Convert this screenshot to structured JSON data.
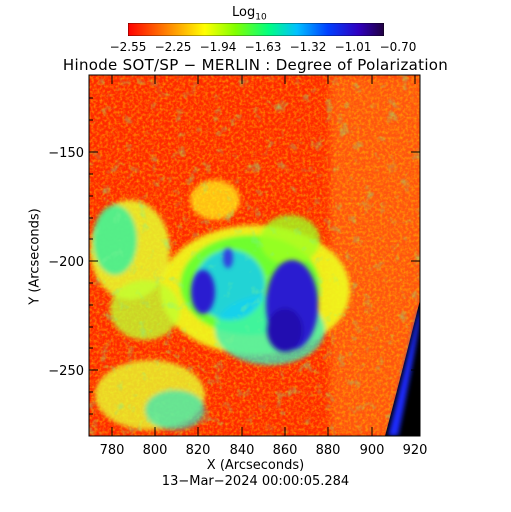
{
  "colorbar": {
    "label_main": "Log",
    "label_sub": "10",
    "ticks": [
      "−2.55",
      "−2.25",
      "−1.94",
      "−1.63",
      "−1.32",
      "−1.01",
      "−0.70"
    ]
  },
  "title": "Hinode SOT/SP − MERLIN : Degree of Polarization",
  "axes": {
    "x_label": "X (Arcseconds)",
    "y_label": "Y (Arcseconds)",
    "x_ticks": [
      "780",
      "800",
      "820",
      "840",
      "860",
      "880",
      "900",
      "920"
    ],
    "y_ticks": [
      "−150",
      "−200",
      "−250"
    ]
  },
  "timestamp": "13−Mar−2024 00:00:05.284",
  "colors": {
    "background": "#ff2a00",
    "limb_dark": "#000000",
    "limb_blue": "#1a2cff",
    "umbra": "#2a1fd0",
    "penumbra": "#00e8a0",
    "plage": "#d8ff10",
    "colormap": [
      "#ff0000",
      "#ff8000",
      "#ffff00",
      "#80ff00",
      "#00ff80",
      "#00c0ff",
      "#0040ff",
      "#3000c0",
      "#200040"
    ]
  }
}
